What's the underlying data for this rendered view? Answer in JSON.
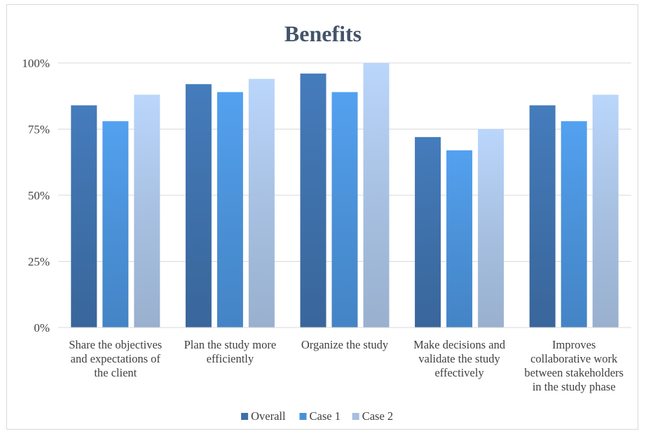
{
  "chart_data": {
    "type": "bar",
    "title": "Benefits",
    "xlabel": "",
    "ylabel": "",
    "ylim": [
      0,
      1
    ],
    "yticks": [
      "0%",
      "25%",
      "50%",
      "75%",
      "100%"
    ],
    "grid": true,
    "legend_position": "bottom",
    "categories": [
      [
        "Share the objectives",
        "and expectations of",
        "the client"
      ],
      [
        "Plan the study more",
        "efficiently"
      ],
      [
        "Organize the study"
      ],
      [
        "Make decisions and",
        "validate the study",
        "effectively"
      ],
      [
        "Improves",
        "collaborative work",
        "between stakeholders",
        "in the study phase"
      ]
    ],
    "series": [
      {
        "name": "Overall",
        "color": "#3e6fa8",
        "values": [
          0.84,
          0.92,
          0.96,
          0.72,
          0.84
        ]
      },
      {
        "name": "Case 1",
        "color": "#4a90d6",
        "values": [
          0.78,
          0.89,
          0.89,
          0.67,
          0.78
        ]
      },
      {
        "name": "Case 2",
        "color": "#a6bfe0",
        "values": [
          0.88,
          0.94,
          1.0,
          0.75,
          0.88
        ]
      }
    ]
  }
}
